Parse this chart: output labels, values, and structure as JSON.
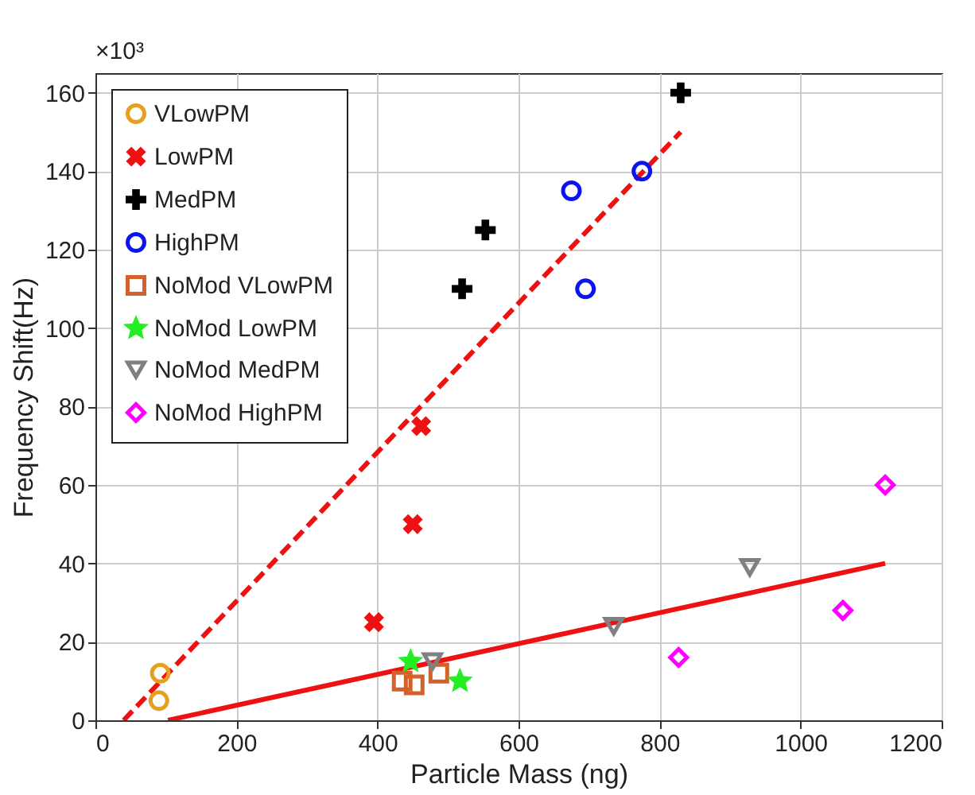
{
  "chart_data": {
    "type": "scatter",
    "xlabel": "Particle Mass (ng)",
    "ylabel": "Frequency Shift(Hz)",
    "annotations": [
      "×10³"
    ],
    "xlim": [
      0,
      1200
    ],
    "xticks": [
      0,
      200,
      400,
      600,
      800,
      {
        "value": 1000,
        "label": "1000"
      },
      {
        "value": 1200,
        "label": "1200"
      }
    ],
    "ylim": [
      0,
      165
    ],
    "yticks": [
      0,
      20,
      40,
      60,
      80,
      100,
      120,
      140,
      160
    ],
    "grid": true,
    "legend": "top left",
    "series": [
      {
        "name": "VLowPM",
        "color": "#e6a020",
        "marker": "circle",
        "x": [
          92,
          90
        ],
        "values": [
          12,
          5
        ]
      },
      {
        "name": "LowPM",
        "color": "#ee1111",
        "marker": "x",
        "x": [
          395,
          450,
          462
        ],
        "values": [
          25,
          50,
          75
        ]
      },
      {
        "name": "MedPM",
        "color": "#000000",
        "marker": "cross",
        "x": [
          520,
          553,
          830
        ],
        "values": [
          110,
          125,
          160
        ]
      },
      {
        "name": "HighPM",
        "color": "#0a14f0",
        "marker": "circle",
        "x": [
          675,
          695,
          775
        ],
        "values": [
          135,
          110,
          140
        ]
      },
      {
        "name": "NoMod VLowPM",
        "color": "#d2622a",
        "marker": "square",
        "x": [
          435,
          452,
          487
        ],
        "values": [
          10,
          9,
          12
        ]
      },
      {
        "name": "NoMod LowPM",
        "color": "#22ee22",
        "marker": "star",
        "x": [
          447,
          517
        ],
        "values": [
          15,
          10
        ]
      },
      {
        "name": "NoMod MedPM",
        "color": "#808080",
        "marker": "triangle",
        "x": [
          478,
          735,
          928
        ],
        "values": [
          15,
          24,
          39
        ]
      },
      {
        "name": "NoMod HighPM",
        "color": "#ff00ff",
        "marker": "diamond",
        "x": [
          827,
          1060,
          1120
        ],
        "values": [
          16,
          28,
          60
        ]
      },
      {
        "type": "line",
        "color": "#ee1111",
        "line_style": "dashed",
        "x": [
          40,
          830
        ],
        "values": [
          0,
          150
        ]
      },
      {
        "type": "line",
        "color": "#ee1111",
        "line_style": "solid",
        "x": [
          103,
          1120
        ],
        "values": [
          0,
          40
        ]
      }
    ]
  }
}
